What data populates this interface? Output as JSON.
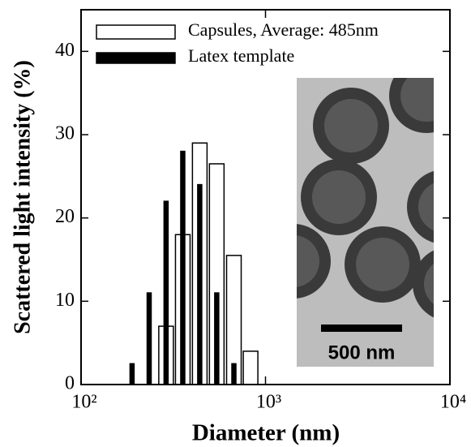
{
  "chart_data": {
    "type": "histogram",
    "xlabel": "Diameter (nm)",
    "ylabel": "Scattered light intensity (%)",
    "x": [
      189,
      234,
      289,
      356,
      440,
      544,
      674,
      830
    ],
    "series": [
      {
        "name": "Capsules, Average: 485nm",
        "color": "#ffffff",
        "values": [
          null,
          null,
          7,
          18,
          29,
          26.5,
          15.5,
          4
        ]
      },
      {
        "name": "Latex template",
        "color": "#000000",
        "values": [
          2.5,
          11,
          22,
          28,
          24,
          11,
          2.5,
          null
        ]
      }
    ],
    "xlim": [
      100,
      10000
    ],
    "xscale": "log",
    "xticks": [
      {
        "value": 100,
        "label": "10²"
      },
      {
        "value": 1000,
        "label": "10³"
      },
      {
        "value": 10000,
        "label": "10⁴"
      }
    ],
    "ylim": [
      0,
      45
    ],
    "yticks": [
      0,
      10,
      20,
      30,
      40
    ],
    "legend": "upper left",
    "annotation": "500 nm"
  }
}
